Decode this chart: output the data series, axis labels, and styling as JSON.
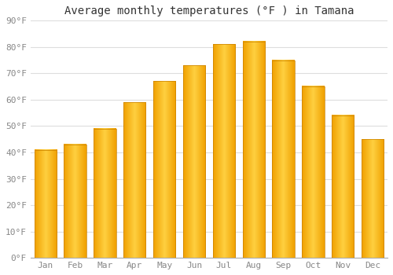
{
  "title": "Average monthly temperatures (°F ) in Tamana",
  "months": [
    "Jan",
    "Feb",
    "Mar",
    "Apr",
    "May",
    "Jun",
    "Jul",
    "Aug",
    "Sep",
    "Oct",
    "Nov",
    "Dec"
  ],
  "values": [
    41,
    43,
    49,
    59,
    67,
    73,
    81,
    82,
    75,
    65,
    54,
    45
  ],
  "bar_color_center": "#FFD040",
  "bar_color_edge": "#F0A000",
  "ylim": [
    0,
    90
  ],
  "yticks": [
    0,
    10,
    20,
    30,
    40,
    50,
    60,
    70,
    80,
    90
  ],
  "ytick_labels": [
    "0°F",
    "10°F",
    "20°F",
    "30°F",
    "40°F",
    "50°F",
    "60°F",
    "70°F",
    "80°F",
    "90°F"
  ],
  "background_color": "#FFFFFF",
  "grid_color": "#DDDDDD",
  "title_fontsize": 10,
  "tick_fontsize": 8,
  "tick_color": "#888888",
  "title_color": "#333333",
  "font_family": "monospace",
  "bar_width": 0.75
}
